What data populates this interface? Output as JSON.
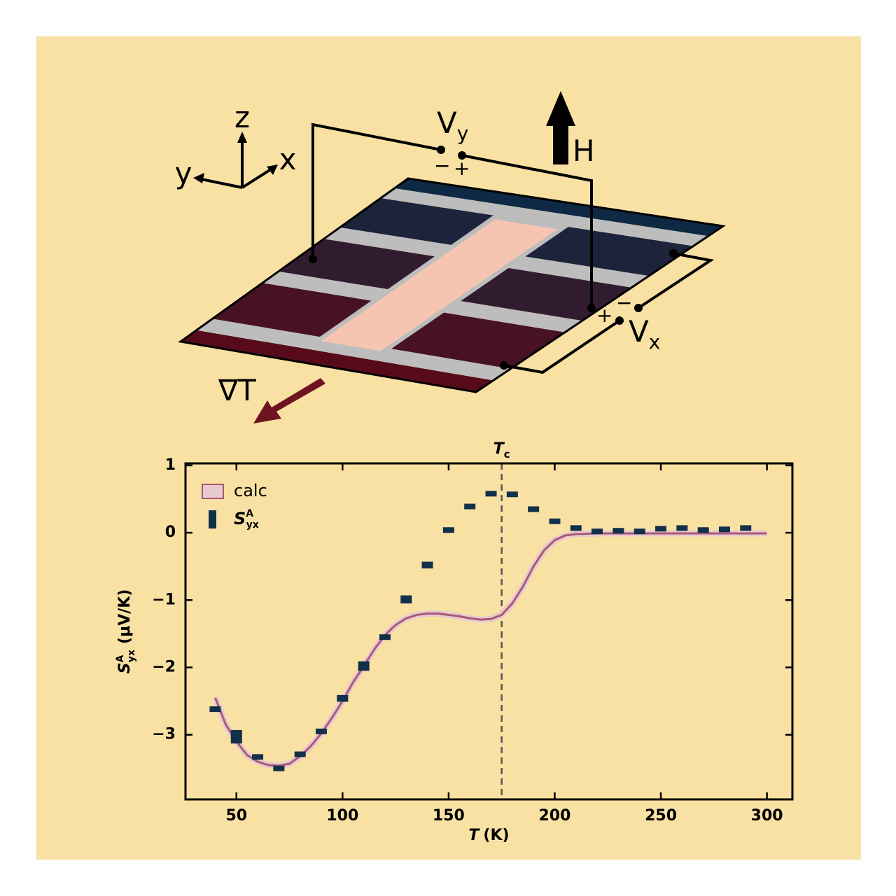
{
  "diagram": {
    "axis_z": "z",
    "axis_y": "y",
    "axis_x": "x",
    "vy_symbol": "V",
    "vy_sub": "y",
    "vy_minus": "−",
    "vy_plus": "+",
    "field": "H",
    "vx_symbol": "V",
    "vx_sub": "x",
    "vx_minus": "−",
    "vx_plus": "+",
    "gradient": "∇T"
  },
  "chart_data": {
    "type": "scatter",
    "tc_label": "T",
    "tc_sub": "c",
    "tc": 175,
    "xlabel": {
      "symbol": "T",
      "unit": "(K)"
    },
    "ylabel": {
      "symbol": "S",
      "sub": "yx",
      "sup": "A",
      "unit": "(μV/K)"
    },
    "xlim": [
      26,
      312
    ],
    "ylim": [
      -3.96,
      1.03
    ],
    "xticks": [
      50,
      100,
      150,
      200,
      250,
      300
    ],
    "yticks": [
      1,
      0,
      {
        "value": -1,
        "label": "−1"
      },
      {
        "value": -2,
        "label": "−2"
      },
      {
        "value": -3,
        "label": "−3"
      }
    ],
    "series": [
      {
        "name": "calc",
        "color": "#a85a74",
        "fill": "#e9c9d0",
        "x": [
          40,
          45,
          50,
          55,
          60,
          65,
          70,
          75,
          80,
          85,
          90,
          95,
          100,
          105,
          110,
          115,
          120,
          125,
          130,
          135,
          140,
          145,
          150,
          155,
          160,
          165,
          170,
          175,
          180,
          185,
          190,
          195,
          200,
          205,
          210,
          220,
          240,
          260,
          280,
          300
        ],
        "values": [
          -2.45,
          -2.85,
          -3.1,
          -3.3,
          -3.4,
          -3.45,
          -3.46,
          -3.43,
          -3.32,
          -3.17,
          -2.98,
          -2.75,
          -2.5,
          -2.22,
          -1.98,
          -1.73,
          -1.52,
          -1.37,
          -1.27,
          -1.22,
          -1.2,
          -1.2,
          -1.22,
          -1.24,
          -1.27,
          -1.29,
          -1.28,
          -1.22,
          -1.05,
          -0.8,
          -0.5,
          -0.26,
          -0.11,
          -0.04,
          -0.02,
          -0.01,
          -0.01,
          -0.01,
          -0.01,
          -0.01
        ]
      },
      {
        "name": "S",
        "name_sub": "yx",
        "name_sup": "A",
        "color": "#123049",
        "x": [
          40,
          50,
          60,
          70,
          80,
          90,
          100,
          110,
          120,
          130,
          140,
          150,
          160,
          170,
          180,
          190,
          200,
          210,
          220,
          230,
          240,
          250,
          260,
          270,
          280,
          290
        ],
        "values": [
          -2.62,
          -3.03,
          -3.33,
          -3.5,
          -3.29,
          -2.95,
          -2.46,
          -1.98,
          -1.55,
          -0.99,
          -0.48,
          0.04,
          0.39,
          0.58,
          0.57,
          0.35,
          0.17,
          0.07,
          0.02,
          0.03,
          0.02,
          0.06,
          0.07,
          0.04,
          0.05,
          0.07
        ],
        "errors": [
          0.01,
          0.1,
          0.04,
          0.03,
          0.03,
          0.01,
          0.05,
          0.07,
          0.04,
          0.06,
          0.05,
          0.04,
          0.03,
          0.01,
          0.01,
          0.02,
          0.01,
          0.01,
          0.01,
          0.02,
          0.02,
          0.02,
          0.03,
          0.01,
          0.01,
          0.02
        ]
      }
    ]
  }
}
